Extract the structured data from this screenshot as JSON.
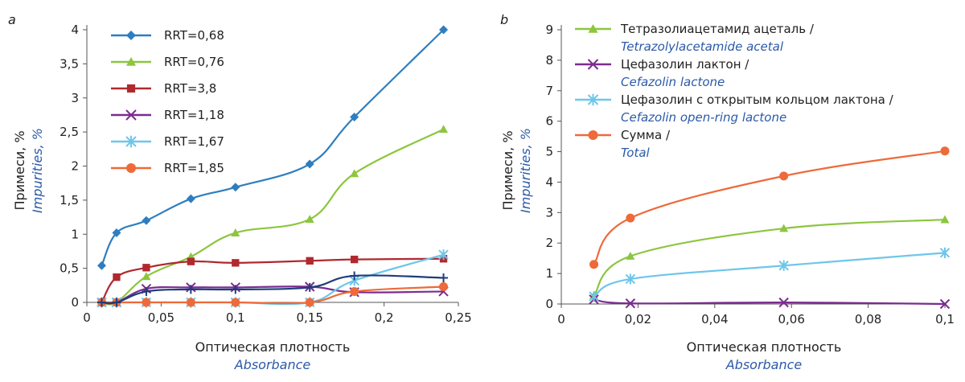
{
  "chart_data": [
    {
      "panel": "a",
      "type": "line",
      "xlabel": "Оптическая плотность",
      "xlabel_en": "Absorbance",
      "ylabel": "Примеси, %",
      "ylabel_en": "Impurities, %",
      "xlim": [
        0,
        0.25
      ],
      "ylim": [
        0,
        4
      ],
      "xticks": [
        "0",
        "0,05",
        "0,1",
        "0,15",
        "0,2",
        "0,25"
      ],
      "xtick_values": [
        0,
        0.05,
        0.1,
        0.15,
        0.2,
        0.25
      ],
      "yticks": [
        "0",
        "0,5",
        "1",
        "1,5",
        "2",
        "2,5",
        "3",
        "3,5",
        "4"
      ],
      "ytick_values": [
        0,
        0.5,
        1,
        1.5,
        2,
        2.5,
        3,
        3.5,
        4
      ],
      "legend_position": "top-left",
      "series": [
        {
          "name": "RRT=0,68",
          "color": "#2e7ebf",
          "marker": "diamond",
          "x": [
            0.01,
            0.02,
            0.04,
            0.07,
            0.1,
            0.15,
            0.18,
            0.24
          ],
          "y": [
            0.54,
            1.02,
            1.2,
            1.52,
            1.69,
            2.03,
            2.72,
            4.0
          ]
        },
        {
          "name": "RRT=0,76",
          "color": "#8cc63f",
          "marker": "triangle",
          "x": [
            0.01,
            0.02,
            0.04,
            0.07,
            0.1,
            0.15,
            0.18,
            0.24
          ],
          "y": [
            0.0,
            0.0,
            0.38,
            0.67,
            1.02,
            1.22,
            1.89,
            2.54
          ]
        },
        {
          "name": "RRT=3,8",
          "color": "#b0292e",
          "marker": "square",
          "x": [
            0.01,
            0.02,
            0.04,
            0.07,
            0.1,
            0.15,
            0.18,
            0.24
          ],
          "y": [
            0.0,
            0.37,
            0.51,
            0.6,
            0.58,
            0.61,
            0.63,
            0.64
          ]
        },
        {
          "name": "RRT=1,18",
          "color": "#7b2c8e",
          "marker": "x",
          "x": [
            0.01,
            0.02,
            0.04,
            0.07,
            0.1,
            0.15,
            0.18,
            0.24
          ],
          "y": [
            0.0,
            0.0,
            0.2,
            0.22,
            0.22,
            0.23,
            0.15,
            0.16
          ]
        },
        {
          "name": "RRT=1,67",
          "color": "#6ec6ea",
          "marker": "star",
          "x": [
            0.01,
            0.02,
            0.04,
            0.07,
            0.1,
            0.15,
            0.18,
            0.24
          ],
          "y": [
            0.0,
            0.0,
            0.0,
            0.0,
            0.0,
            0.0,
            0.32,
            0.7
          ]
        },
        {
          "name": "RRT=1,85",
          "color": "#ee6a3a",
          "marker": "circle",
          "x": [
            0.01,
            0.02,
            0.04,
            0.07,
            0.1,
            0.15,
            0.18,
            0.24
          ],
          "y": [
            0.0,
            0.0,
            0.0,
            0.0,
            0.0,
            0.0,
            0.16,
            0.23
          ]
        },
        {
          "name": "",
          "color": "#1f3d7a",
          "marker": "plus",
          "x": [
            0.01,
            0.02,
            0.04,
            0.07,
            0.1,
            0.15,
            0.18,
            0.24
          ],
          "y": [
            0.0,
            0.0,
            0.16,
            0.19,
            0.19,
            0.22,
            0.39,
            0.36
          ]
        }
      ]
    },
    {
      "panel": "b",
      "type": "line",
      "xlabel": "Оптическая плотность",
      "xlabel_en": "Absorbance",
      "ylabel": "Примеси, %",
      "ylabel_en": "Impurities, %",
      "xlim": [
        0,
        0.1
      ],
      "ylim": [
        0,
        9
      ],
      "xticks": [
        "0",
        "0,02",
        "0,04",
        "0,06",
        "0,08",
        "0,1"
      ],
      "xtick_values": [
        0,
        0.02,
        0.04,
        0.06,
        0.08,
        0.1
      ],
      "yticks": [
        "0",
        "1",
        "2",
        "3",
        "4",
        "5",
        "6",
        "7",
        "8",
        "9"
      ],
      "ytick_values": [
        0,
        1,
        2,
        3,
        4,
        5,
        6,
        7,
        8,
        9
      ],
      "legend_position": "top-left",
      "series": [
        {
          "name": "Тетразолиацетамид ацеталь /",
          "name_en": "Tetrazolylacetamide acetal",
          "color": "#8cc63f",
          "marker": "triangle",
          "x": [
            0.0085,
            0.018,
            0.058,
            0.1
          ],
          "y": [
            0.28,
            1.57,
            2.48,
            2.77
          ]
        },
        {
          "name": "Цефазолин лактон /",
          "name_en": "Cefazolin lactone",
          "color": "#7b2c8e",
          "marker": "x",
          "x": [
            0.0085,
            0.018,
            0.058,
            0.1
          ],
          "y": [
            0.15,
            0.02,
            0.05,
            0.0
          ]
        },
        {
          "name": "Цефазолин с открытым кольцом лактона /",
          "name_en": "Cefazolin open-ring lactone",
          "color": "#6ec6ea",
          "marker": "star",
          "x": [
            0.0085,
            0.018,
            0.058,
            0.1
          ],
          "y": [
            0.25,
            0.82,
            1.26,
            1.68
          ]
        },
        {
          "name": "Сумма /",
          "name_en": "Total",
          "color": "#ee6a3a",
          "marker": "circle",
          "x": [
            0.0085,
            0.018,
            0.058,
            0.1
          ],
          "y": [
            1.3,
            2.82,
            4.2,
            5.02
          ]
        }
      ]
    }
  ]
}
